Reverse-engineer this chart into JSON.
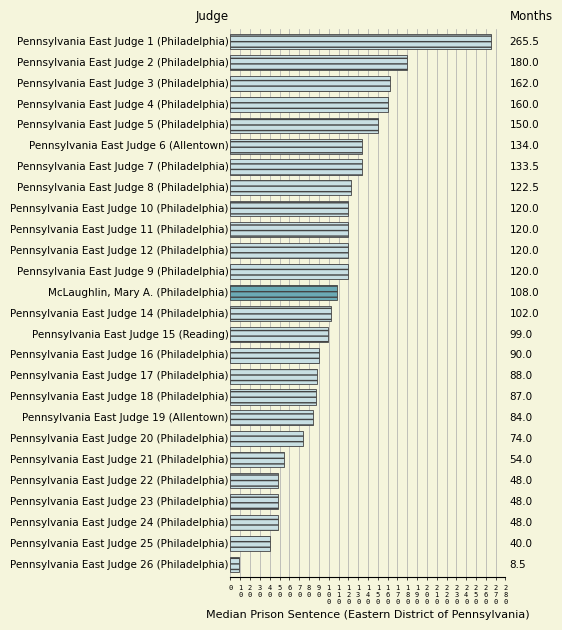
{
  "judges": [
    "Pennsylvania East Judge 1 (Philadelphia)",
    "Pennsylvania East Judge 2 (Philadelphia)",
    "Pennsylvania East Judge 3 (Philadelphia)",
    "Pennsylvania East Judge 4 (Philadelphia)",
    "Pennsylvania East Judge 5 (Philadelphia)",
    "Pennsylvania East Judge 6 (Allentown)",
    "Pennsylvania East Judge 7 (Philadelphia)",
    "Pennsylvania East Judge 8 (Philadelphia)",
    "Pennsylvania East Judge 10 (Philadelphia)",
    "Pennsylvania East Judge 11 (Philadelphia)",
    "Pennsylvania East Judge 12 (Philadelphia)",
    "Pennsylvania East Judge 9 (Philadelphia)",
    "McLaughlin, Mary A. (Philadelphia)",
    "Pennsylvania East Judge 14 (Philadelphia)",
    "Pennsylvania East Judge 15 (Reading)",
    "Pennsylvania East Judge 16 (Philadelphia)",
    "Pennsylvania East Judge 17 (Philadelphia)",
    "Pennsylvania East Judge 18 (Philadelphia)",
    "Pennsylvania East Judge 19 (Allentown)",
    "Pennsylvania East Judge 20 (Philadelphia)",
    "Pennsylvania East Judge 21 (Philadelphia)",
    "Pennsylvania East Judge 22 (Philadelphia)",
    "Pennsylvania East Judge 23 (Philadelphia)",
    "Pennsylvania East Judge 24 (Philadelphia)",
    "Pennsylvania East Judge 25 (Philadelphia)",
    "Pennsylvania East Judge 26 (Philadelphia)"
  ],
  "values": [
    265.5,
    180.0,
    162.0,
    160.0,
    150.0,
    134.0,
    133.5,
    122.5,
    120.0,
    120.0,
    120.0,
    120.0,
    108.0,
    102.0,
    99.0,
    90.0,
    88.0,
    87.0,
    84.0,
    74.0,
    54.0,
    48.0,
    48.0,
    48.0,
    40.0,
    8.5
  ],
  "bar_color_default": "#c8dfe3",
  "bar_color_highlight": "#6baab5",
  "highlight_index": 12,
  "hatch_pattern": "---",
  "background_color": "#f5f5dc",
  "title_judge": "Judge",
  "title_months": "Months",
  "xlabel": "Median Prison Sentence (Eastern District of Pennsylvania)",
  "xtick_values": [
    0,
    10,
    20,
    30,
    40,
    50,
    60,
    70,
    80,
    90,
    100,
    110,
    120,
    130,
    140,
    150,
    160,
    170,
    180,
    190,
    200,
    210,
    220,
    230,
    240,
    250,
    260,
    270,
    280
  ],
  "xlim": [
    0,
    280
  ],
  "grid_color": "#aaaaaa",
  "label_fontsize": 7.5,
  "value_fontsize": 7.5,
  "xlabel_fontsize": 8,
  "bar_height": 0.72,
  "figsize": [
    5.5,
    6.37
  ],
  "dpi": 100
}
